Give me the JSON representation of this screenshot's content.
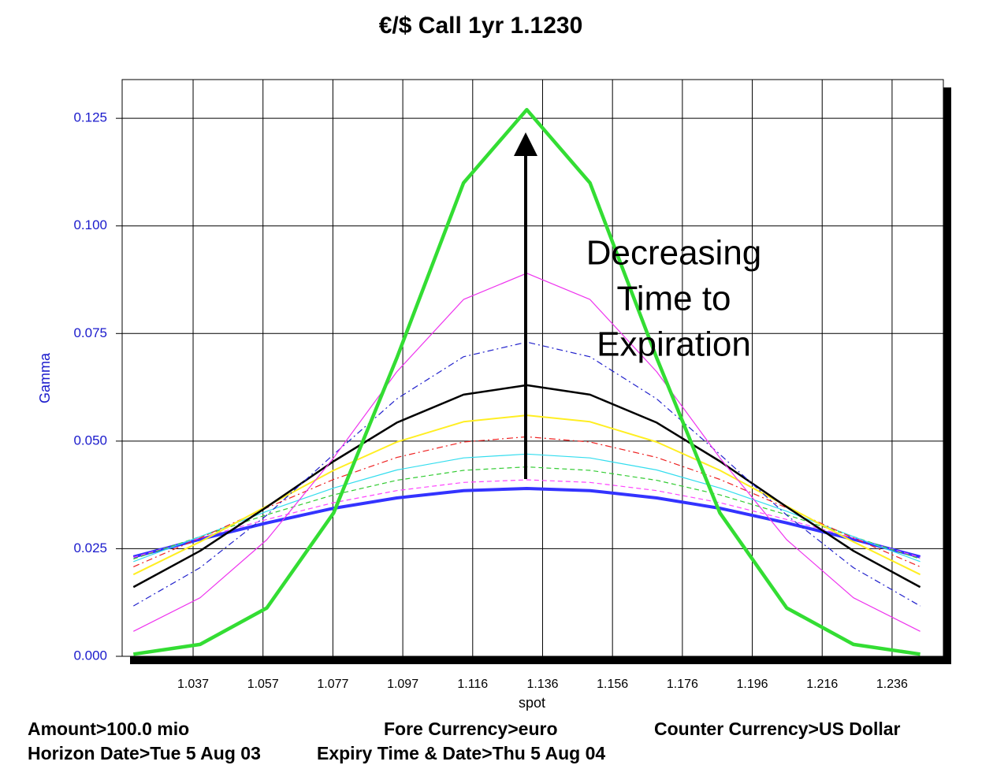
{
  "chart_data": {
    "type": "line",
    "title": "€/$ Call 1yr 1.1230",
    "x_label": "spot",
    "y_label": "Gamma",
    "annotation": [
      "Decreasing",
      "Time to",
      "Expiration"
    ],
    "footer": [
      [
        "Amount>100.0 mio",
        "Fore Currency>euro",
        "Counter Currency>US Dollar"
      ],
      [
        "Horizon Date>Tue 5 Aug 03",
        "Expiry Time & Date>Thu 5 Aug 04"
      ]
    ],
    "grid": true,
    "xlim": [
      1.0168,
      1.2506
    ],
    "ylim": [
      0,
      0.134
    ],
    "xticks": [
      {
        "value": 1.037,
        "label": "1.037"
      },
      {
        "value": 1.0569,
        "label": "1.057"
      },
      {
        "value": 1.0768,
        "label": "1.077"
      },
      {
        "value": 1.0967,
        "label": "1.097"
      },
      {
        "value": 1.1166,
        "label": "1.116"
      },
      {
        "value": 1.1365,
        "label": "1.136"
      },
      {
        "value": 1.1564,
        "label": "1.156"
      },
      {
        "value": 1.1763,
        "label": "1.176"
      },
      {
        "value": 1.1962,
        "label": "1.196"
      },
      {
        "value": 1.2161,
        "label": "1.216"
      },
      {
        "value": 1.236,
        "label": "1.236"
      }
    ],
    "yticks": [
      {
        "value": 0,
        "label": "0.000"
      },
      {
        "value": 0.025,
        "label": "0.025"
      },
      {
        "value": 0.05,
        "label": "0.050"
      },
      {
        "value": 0.075,
        "label": "0.075"
      },
      {
        "value": 0.1,
        "label": "0.100"
      },
      {
        "value": 0.125,
        "label": "0.125"
      }
    ],
    "x": [
      1.02,
      1.039,
      1.058,
      1.077,
      1.095,
      1.114,
      1.132,
      1.15,
      1.169,
      1.187,
      1.206,
      1.225,
      1.244
    ],
    "series": [
      {
        "color": "#3333ff",
        "dash": "solid",
        "width": 4,
        "values": [
          0.0231,
          0.0272,
          0.031,
          0.0344,
          0.0368,
          0.0385,
          0.039,
          0.0385,
          0.0368,
          0.0344,
          0.031,
          0.0272,
          0.0231
        ]
      },
      {
        "color": "#ff44ff",
        "dash": "dashed",
        "width": 1.2,
        "values": [
          0.023,
          0.0275,
          0.0318,
          0.0357,
          0.0385,
          0.0404,
          0.041,
          0.0404,
          0.0385,
          0.0357,
          0.0318,
          0.0275,
          0.023
        ]
      },
      {
        "color": "#33cc33",
        "dash": "dashed",
        "width": 1.2,
        "values": [
          0.0226,
          0.0278,
          0.0329,
          0.0375,
          0.0409,
          0.0432,
          0.044,
          0.0432,
          0.0409,
          0.0375,
          0.0329,
          0.0278,
          0.0226
        ]
      },
      {
        "color": "#33ddee",
        "dash": "solid",
        "width": 1.2,
        "values": [
          0.022,
          0.0278,
          0.0337,
          0.0391,
          0.0433,
          0.0461,
          0.047,
          0.0461,
          0.0433,
          0.0391,
          0.0337,
          0.0278,
          0.022
        ]
      },
      {
        "color": "#ee2222",
        "dash": "dashdot",
        "width": 1.2,
        "values": [
          0.0208,
          0.0275,
          0.0345,
          0.0411,
          0.0462,
          0.0498,
          0.051,
          0.0498,
          0.0462,
          0.0411,
          0.0345,
          0.0275,
          0.0208
        ]
      },
      {
        "color": "#ffee22",
        "dash": "solid",
        "width": 2,
        "values": [
          0.019,
          0.0266,
          0.0349,
          0.0432,
          0.0498,
          0.0545,
          0.056,
          0.0545,
          0.0498,
          0.0432,
          0.0349,
          0.0266,
          0.019
        ]
      },
      {
        "color": "#000000",
        "dash": "solid",
        "width": 2.5,
        "values": [
          0.0161,
          0.0245,
          0.0347,
          0.0453,
          0.0543,
          0.0608,
          0.063,
          0.0608,
          0.0543,
          0.0453,
          0.0347,
          0.0245,
          0.0161
        ]
      },
      {
        "color": "#2222cc",
        "dash": "dashdot",
        "width": 1.2,
        "values": [
          0.0117,
          0.0206,
          0.0328,
          0.0469,
          0.0598,
          0.0696,
          0.073,
          0.0696,
          0.0598,
          0.0469,
          0.0328,
          0.0206,
          0.0117
        ]
      },
      {
        "color": "#ee33ee",
        "dash": "solid",
        "width": 1.2,
        "values": [
          0.0058,
          0.0136,
          0.0271,
          0.0461,
          0.0661,
          0.0829,
          0.089,
          0.0829,
          0.0661,
          0.0461,
          0.0271,
          0.0136,
          0.0058
        ]
      },
      {
        "color": "#33dd33",
        "dash": "solid",
        "width": 4.5,
        "values": [
          0.00049,
          0.00276,
          0.01124,
          0.0333,
          0.0693,
          0.11,
          0.127,
          0.11,
          0.0693,
          0.0333,
          0.01124,
          0.00276,
          0.00049
        ]
      }
    ]
  }
}
